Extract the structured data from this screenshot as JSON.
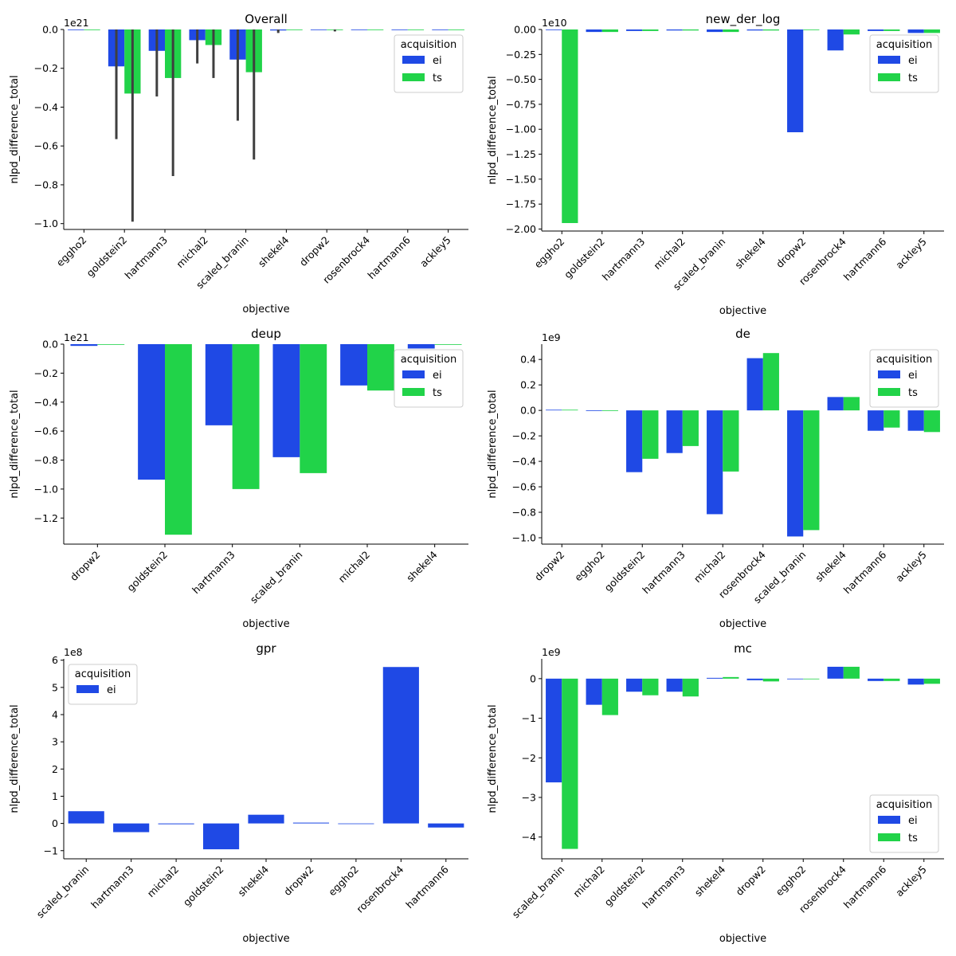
{
  "chart_data": [
    {
      "type": "bar",
      "title": "Overall",
      "xlabel": "objective",
      "ylabel": "nlpd_difference_total",
      "scale_label": "1e21",
      "ylim": [
        -1.03,
        0.0
      ],
      "yticks": [
        0.0,
        -0.2,
        -0.4,
        -0.6,
        -0.8,
        -1.0
      ],
      "ytick_labels": [
        "0.0",
        "−0.2",
        "−0.4",
        "−0.6",
        "−0.8",
        "−1.0"
      ],
      "legend_title": "acquisition",
      "legend_position": "upper-right",
      "categories": [
        "eggho2",
        "goldstein2",
        "hartmann3",
        "michal2",
        "scaled_branin",
        "shekel4",
        "dropw2",
        "rosenbrock4",
        "hartmann6",
        "ackley5"
      ],
      "series": [
        {
          "name": "ei",
          "color": "#1f49e5",
          "values": [
            0,
            -0.19,
            -0.11,
            -0.055,
            -0.155,
            -0.005,
            -0.003,
            0,
            0,
            0
          ],
          "err_low": [
            null,
            -0.565,
            -0.345,
            -0.175,
            -0.47,
            -0.018,
            null,
            null,
            null,
            null
          ],
          "err_high": [
            null,
            0,
            0,
            0,
            0,
            0,
            null,
            null,
            null,
            null
          ]
        },
        {
          "name": "ts",
          "color": "#21d349",
          "values": [
            0,
            -0.33,
            -0.25,
            -0.08,
            -0.22,
            0,
            -0.003,
            0,
            0,
            0
          ],
          "err_low": [
            null,
            -0.99,
            -0.755,
            -0.25,
            -0.67,
            null,
            -0.01,
            null,
            null,
            null
          ],
          "err_high": [
            null,
            0,
            0,
            0,
            0,
            null,
            0,
            null,
            null,
            null
          ]
        }
      ]
    },
    {
      "type": "bar",
      "title": "new_der_log",
      "xlabel": "objective",
      "ylabel": "nlpd_difference_total",
      "scale_label": "1e10",
      "ylim": [
        -2.02,
        0.0
      ],
      "yticks": [
        0.0,
        -0.25,
        -0.5,
        -0.75,
        -1.0,
        -1.25,
        -1.5,
        -1.75,
        -2.0
      ],
      "ytick_labels": [
        "0.00",
        "−0.25",
        "−0.50",
        "−0.75",
        "−1.00",
        "−1.25",
        "−1.50",
        "−1.75",
        "−2.00"
      ],
      "legend_title": "acquisition",
      "legend_position": "upper-right",
      "categories": [
        "eggho2",
        "goldstein2",
        "hartmann3",
        "michal2",
        "scaled_branin",
        "shekel4",
        "dropw2",
        "rosenbrock4",
        "hartmann6",
        "ackley5"
      ],
      "series": [
        {
          "name": "ei",
          "color": "#1f49e5",
          "values": [
            -0.005,
            -0.025,
            -0.015,
            -0.01,
            -0.025,
            -0.01,
            -1.03,
            -0.21,
            -0.015,
            -0.035
          ]
        },
        {
          "name": "ts",
          "color": "#21d349",
          "values": [
            -1.94,
            -0.025,
            -0.015,
            -0.01,
            -0.025,
            -0.01,
            -0.005,
            -0.05,
            -0.015,
            -0.035
          ]
        }
      ]
    },
    {
      "type": "bar",
      "title": "deup",
      "xlabel": "objective",
      "ylabel": "nlpd_difference_total",
      "scale_label": "1e21",
      "ylim": [
        -1.38,
        0.0
      ],
      "yticks": [
        0.0,
        -0.2,
        -0.4,
        -0.6,
        -0.8,
        -1.0,
        -1.2
      ],
      "ytick_labels": [
        "0.0",
        "−0.2",
        "−0.4",
        "−0.6",
        "−0.8",
        "−1.0",
        "−1.2"
      ],
      "legend_title": "acquisition",
      "legend_position": "upper-right",
      "categories": [
        "dropw2",
        "goldstein2",
        "hartmann3",
        "scaled_branin",
        "michal2",
        "shekel4"
      ],
      "series": [
        {
          "name": "ei",
          "color": "#1f49e5",
          "values": [
            -0.012,
            -0.935,
            -0.56,
            -0.78,
            -0.285,
            -0.03
          ]
        },
        {
          "name": "ts",
          "color": "#21d349",
          "values": [
            0,
            -1.315,
            -1.0,
            -0.89,
            -0.32,
            0
          ]
        }
      ]
    },
    {
      "type": "bar",
      "title": "de",
      "xlabel": "objective",
      "ylabel": "nlpd_difference_total",
      "scale_label": "1e9",
      "ylim": [
        -1.05,
        0.52
      ],
      "yticks": [
        0.4,
        0.2,
        0.0,
        -0.2,
        -0.4,
        -0.6,
        -0.8,
        -1.0
      ],
      "ytick_labels": [
        "0.4",
        "0.2",
        "0.0",
        "−0.2",
        "−0.4",
        "−0.6",
        "−0.8",
        "−1.0"
      ],
      "legend_title": "acquisition",
      "legend_position": "upper-right",
      "categories": [
        "dropw2",
        "eggho2",
        "goldstein2",
        "hartmann3",
        "michal2",
        "rosenbrock4",
        "scaled_branin",
        "shekel4",
        "hartmann6",
        "ackley5"
      ],
      "series": [
        {
          "name": "ei",
          "color": "#1f49e5",
          "values": [
            0.005,
            0,
            -0.485,
            -0.335,
            -0.815,
            0.41,
            -0.99,
            0.105,
            -0.16,
            -0.16
          ]
        },
        {
          "name": "ts",
          "color": "#21d349",
          "values": [
            0.005,
            0,
            -0.38,
            -0.28,
            -0.48,
            0.45,
            -0.94,
            0.105,
            -0.135,
            -0.17
          ]
        }
      ]
    },
    {
      "type": "bar",
      "title": "gpr",
      "xlabel": "objective",
      "ylabel": "nlpd_difference_total",
      "scale_label": "1e8",
      "ylim": [
        -1.3,
        6.05
      ],
      "yticks": [
        6,
        5,
        4,
        3,
        2,
        1,
        0,
        -1
      ],
      "ytick_labels": [
        "6",
        "5",
        "4",
        "3",
        "2",
        "1",
        "0",
        "−1"
      ],
      "legend_title": "acquisition",
      "legend_position": "upper-left",
      "categories": [
        "scaled_branin",
        "hartmann3",
        "michal2",
        "goldstein2",
        "shekel4",
        "dropw2",
        "eggho2",
        "rosenbrock4",
        "hartmann6"
      ],
      "series": [
        {
          "name": "ei",
          "color": "#1f49e5",
          "values": [
            0.45,
            -0.32,
            -0.03,
            -0.95,
            0.32,
            0.03,
            0,
            5.75,
            -0.15
          ]
        }
      ]
    },
    {
      "type": "bar",
      "title": "mc",
      "xlabel": "objective",
      "ylabel": "nlpd_difference_total",
      "scale_label": "1e9",
      "ylim": [
        -4.55,
        0.5
      ],
      "yticks": [
        0,
        -1,
        -2,
        -3,
        -4
      ],
      "ytick_labels": [
        "0",
        "−1",
        "−2",
        "−3",
        "−4"
      ],
      "legend_title": "acquisition",
      "legend_position": "lower-right",
      "categories": [
        "scaled_branin",
        "michal2",
        "goldstein2",
        "hartmann3",
        "shekel4",
        "dropw2",
        "eggho2",
        "rosenbrock4",
        "hartmann6",
        "ackley5"
      ],
      "series": [
        {
          "name": "ei",
          "color": "#1f49e5",
          "values": [
            -2.62,
            -0.66,
            -0.33,
            -0.33,
            0.02,
            -0.04,
            0,
            0.3,
            -0.06,
            -0.15
          ]
        },
        {
          "name": "ts",
          "color": "#21d349",
          "values": [
            -4.3,
            -0.92,
            -0.42,
            -0.45,
            0.04,
            -0.07,
            0,
            0.3,
            -0.06,
            -0.13
          ]
        }
      ]
    }
  ]
}
